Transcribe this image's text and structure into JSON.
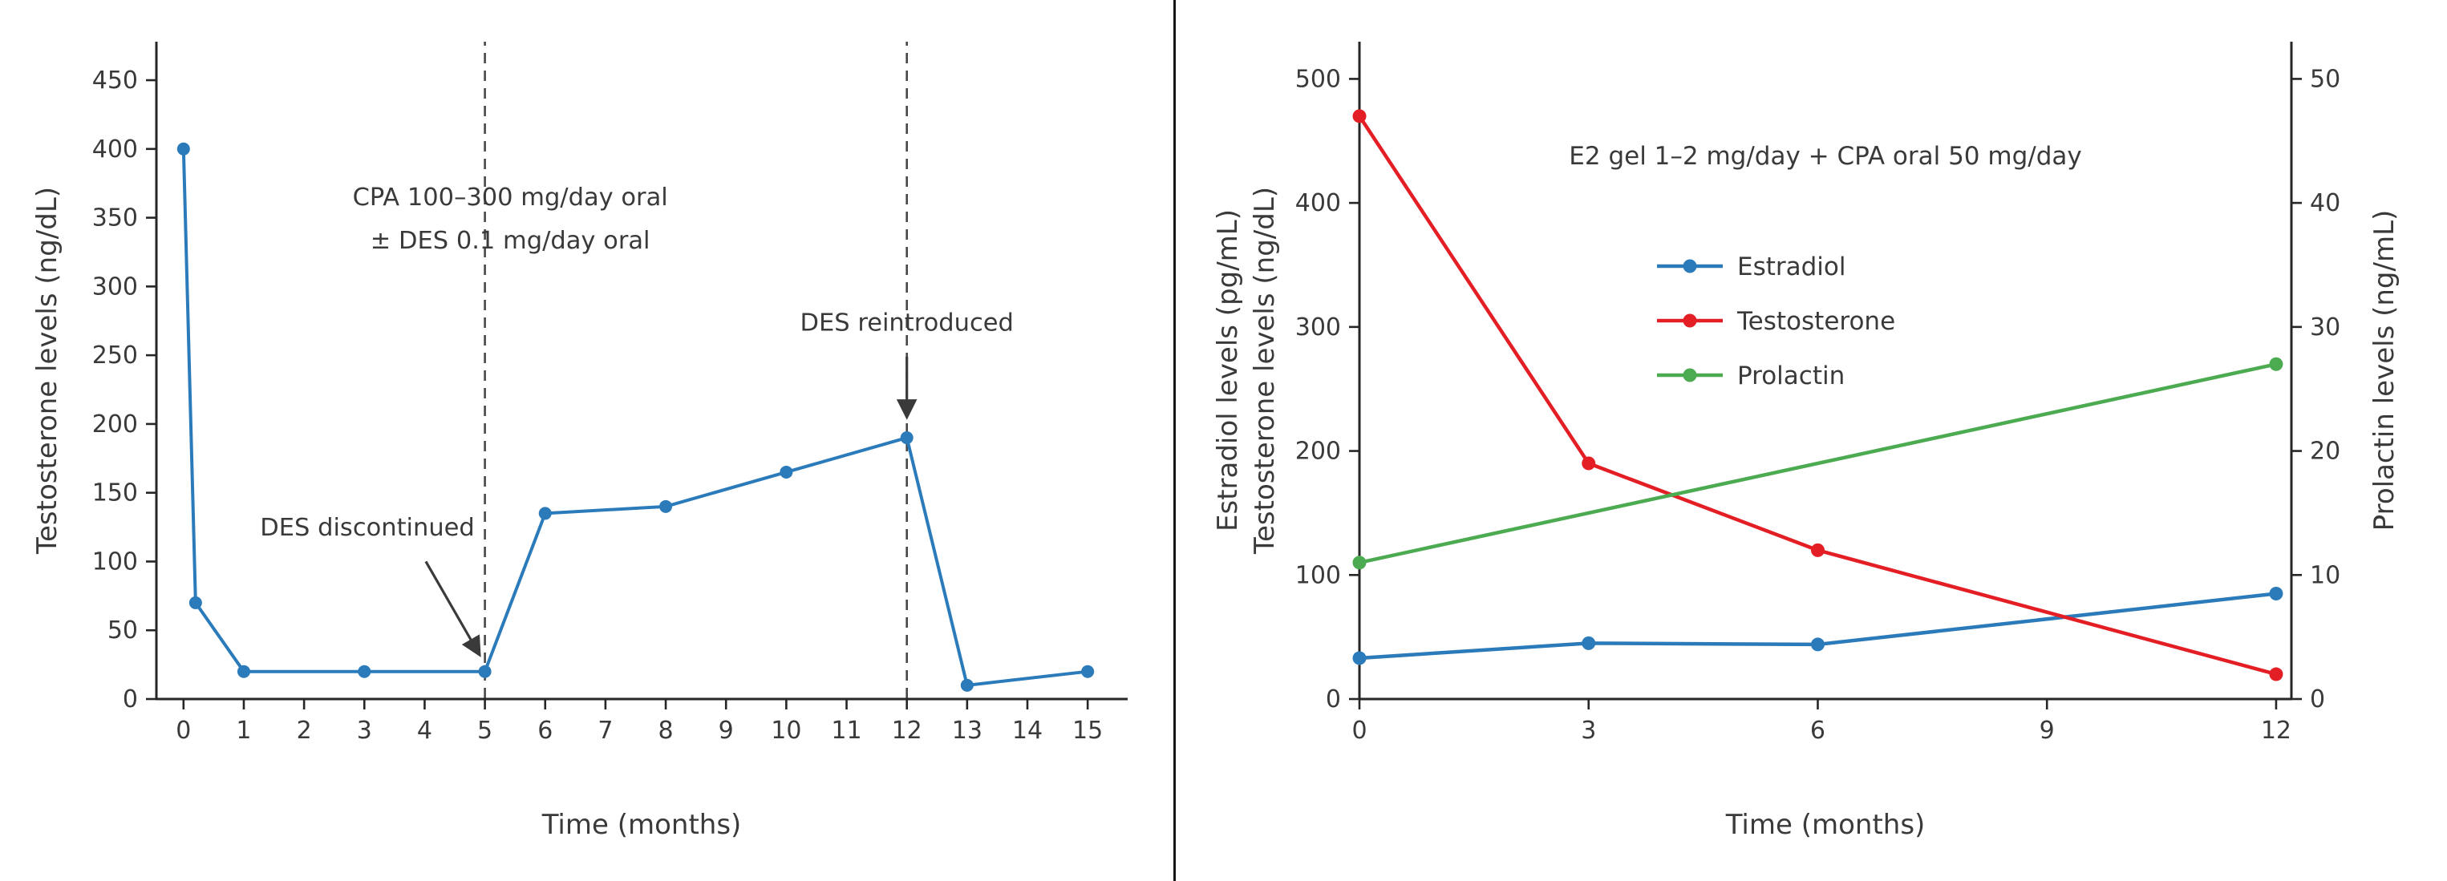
{
  "figure": {
    "background": "#ffffff",
    "divider_color": "#161616"
  },
  "chart_data": [
    {
      "id": "cpa-des-chart",
      "type": "line",
      "title": "",
      "xlabel": "Time (months)",
      "ylabel": "Testosterone levels (ng/dL)",
      "xlim": [
        -0.45,
        15.65
      ],
      "ylim": [
        0,
        478
      ],
      "xticks": [
        0,
        1,
        2,
        3,
        4,
        5,
        6,
        7,
        8,
        9,
        10,
        11,
        12,
        13,
        14,
        15
      ],
      "yticks": [
        0,
        50,
        100,
        150,
        200,
        250,
        300,
        350,
        400,
        450
      ],
      "grid": false,
      "legend_position": "none",
      "series": [
        {
          "name": "Testosterone",
          "color": "#2b7bbb",
          "axis": "left",
          "x": [
            0,
            0.2,
            1,
            3,
            5,
            6,
            8,
            10,
            12,
            13,
            15
          ],
          "y": [
            400,
            70,
            20,
            20,
            20,
            135,
            140,
            165,
            190,
            10,
            20
          ]
        }
      ],
      "vlines": [
        {
          "x": 5,
          "style": "dashed"
        },
        {
          "x": 12,
          "style": "dashed"
        }
      ],
      "annotations": [
        {
          "kind": "text",
          "lines": [
            "CPA 100–300 mg/day oral",
            "± DES 0.1 mg/day oral"
          ],
          "x": 5.42,
          "y": 359,
          "line_step": 54
        },
        {
          "kind": "arrow-text",
          "text": "DES discontinued",
          "tx": 3.05,
          "ty": 119,
          "ax1": 4.02,
          "ay1": 100,
          "ax2": 4.9,
          "ay2": 33
        },
        {
          "kind": "arrow-text",
          "text": "DES reintroduced",
          "tx": 12,
          "ty": 268,
          "ax1": 12,
          "ay1": 249,
          "ax2": 12,
          "ay2": 206
        }
      ]
    },
    {
      "id": "e2-cpa-chart",
      "type": "line",
      "title": "",
      "xlabel": "Time (months)",
      "ylabels_left": [
        "Estradiol levels (pg/mL)",
        "Testosterone levels (ng/dL)"
      ],
      "ylabel_right": "Prolactin levels (ng/mL)",
      "xlim": [
        0,
        12.2
      ],
      "ylim": [
        0,
        530
      ],
      "y2lim": [
        0,
        53
      ],
      "xticks": [
        0,
        3,
        6,
        9,
        12
      ],
      "yticks": [
        0,
        100,
        200,
        300,
        400,
        500
      ],
      "y2ticks": [
        0,
        10,
        20,
        30,
        40,
        50
      ],
      "grid": false,
      "legend_position": "upper-center inside",
      "series": [
        {
          "name": "Estradiol",
          "color": "#2b7bbb",
          "axis": "left",
          "x": [
            0,
            3,
            6,
            12
          ],
          "y": [
            33,
            45,
            44,
            85
          ]
        },
        {
          "name": "Testosterone",
          "color": "#e31e24",
          "axis": "left",
          "x": [
            0,
            3,
            6,
            12
          ],
          "y": [
            470,
            190,
            120,
            20
          ]
        },
        {
          "name": "Prolactin",
          "color": "#4cab50",
          "axis": "right",
          "x": [
            0,
            12
          ],
          "y": [
            11,
            27
          ]
        }
      ],
      "legend": {
        "entries": [
          "Estradiol",
          "Testosterone",
          "Prolactin"
        ]
      },
      "annotations": [
        {
          "kind": "text",
          "lines": [
            "E2 gel 1–2 mg/day + CPA oral 50 mg/day"
          ],
          "x": 6.1,
          "y": 431,
          "line_step": 54
        }
      ]
    }
  ]
}
